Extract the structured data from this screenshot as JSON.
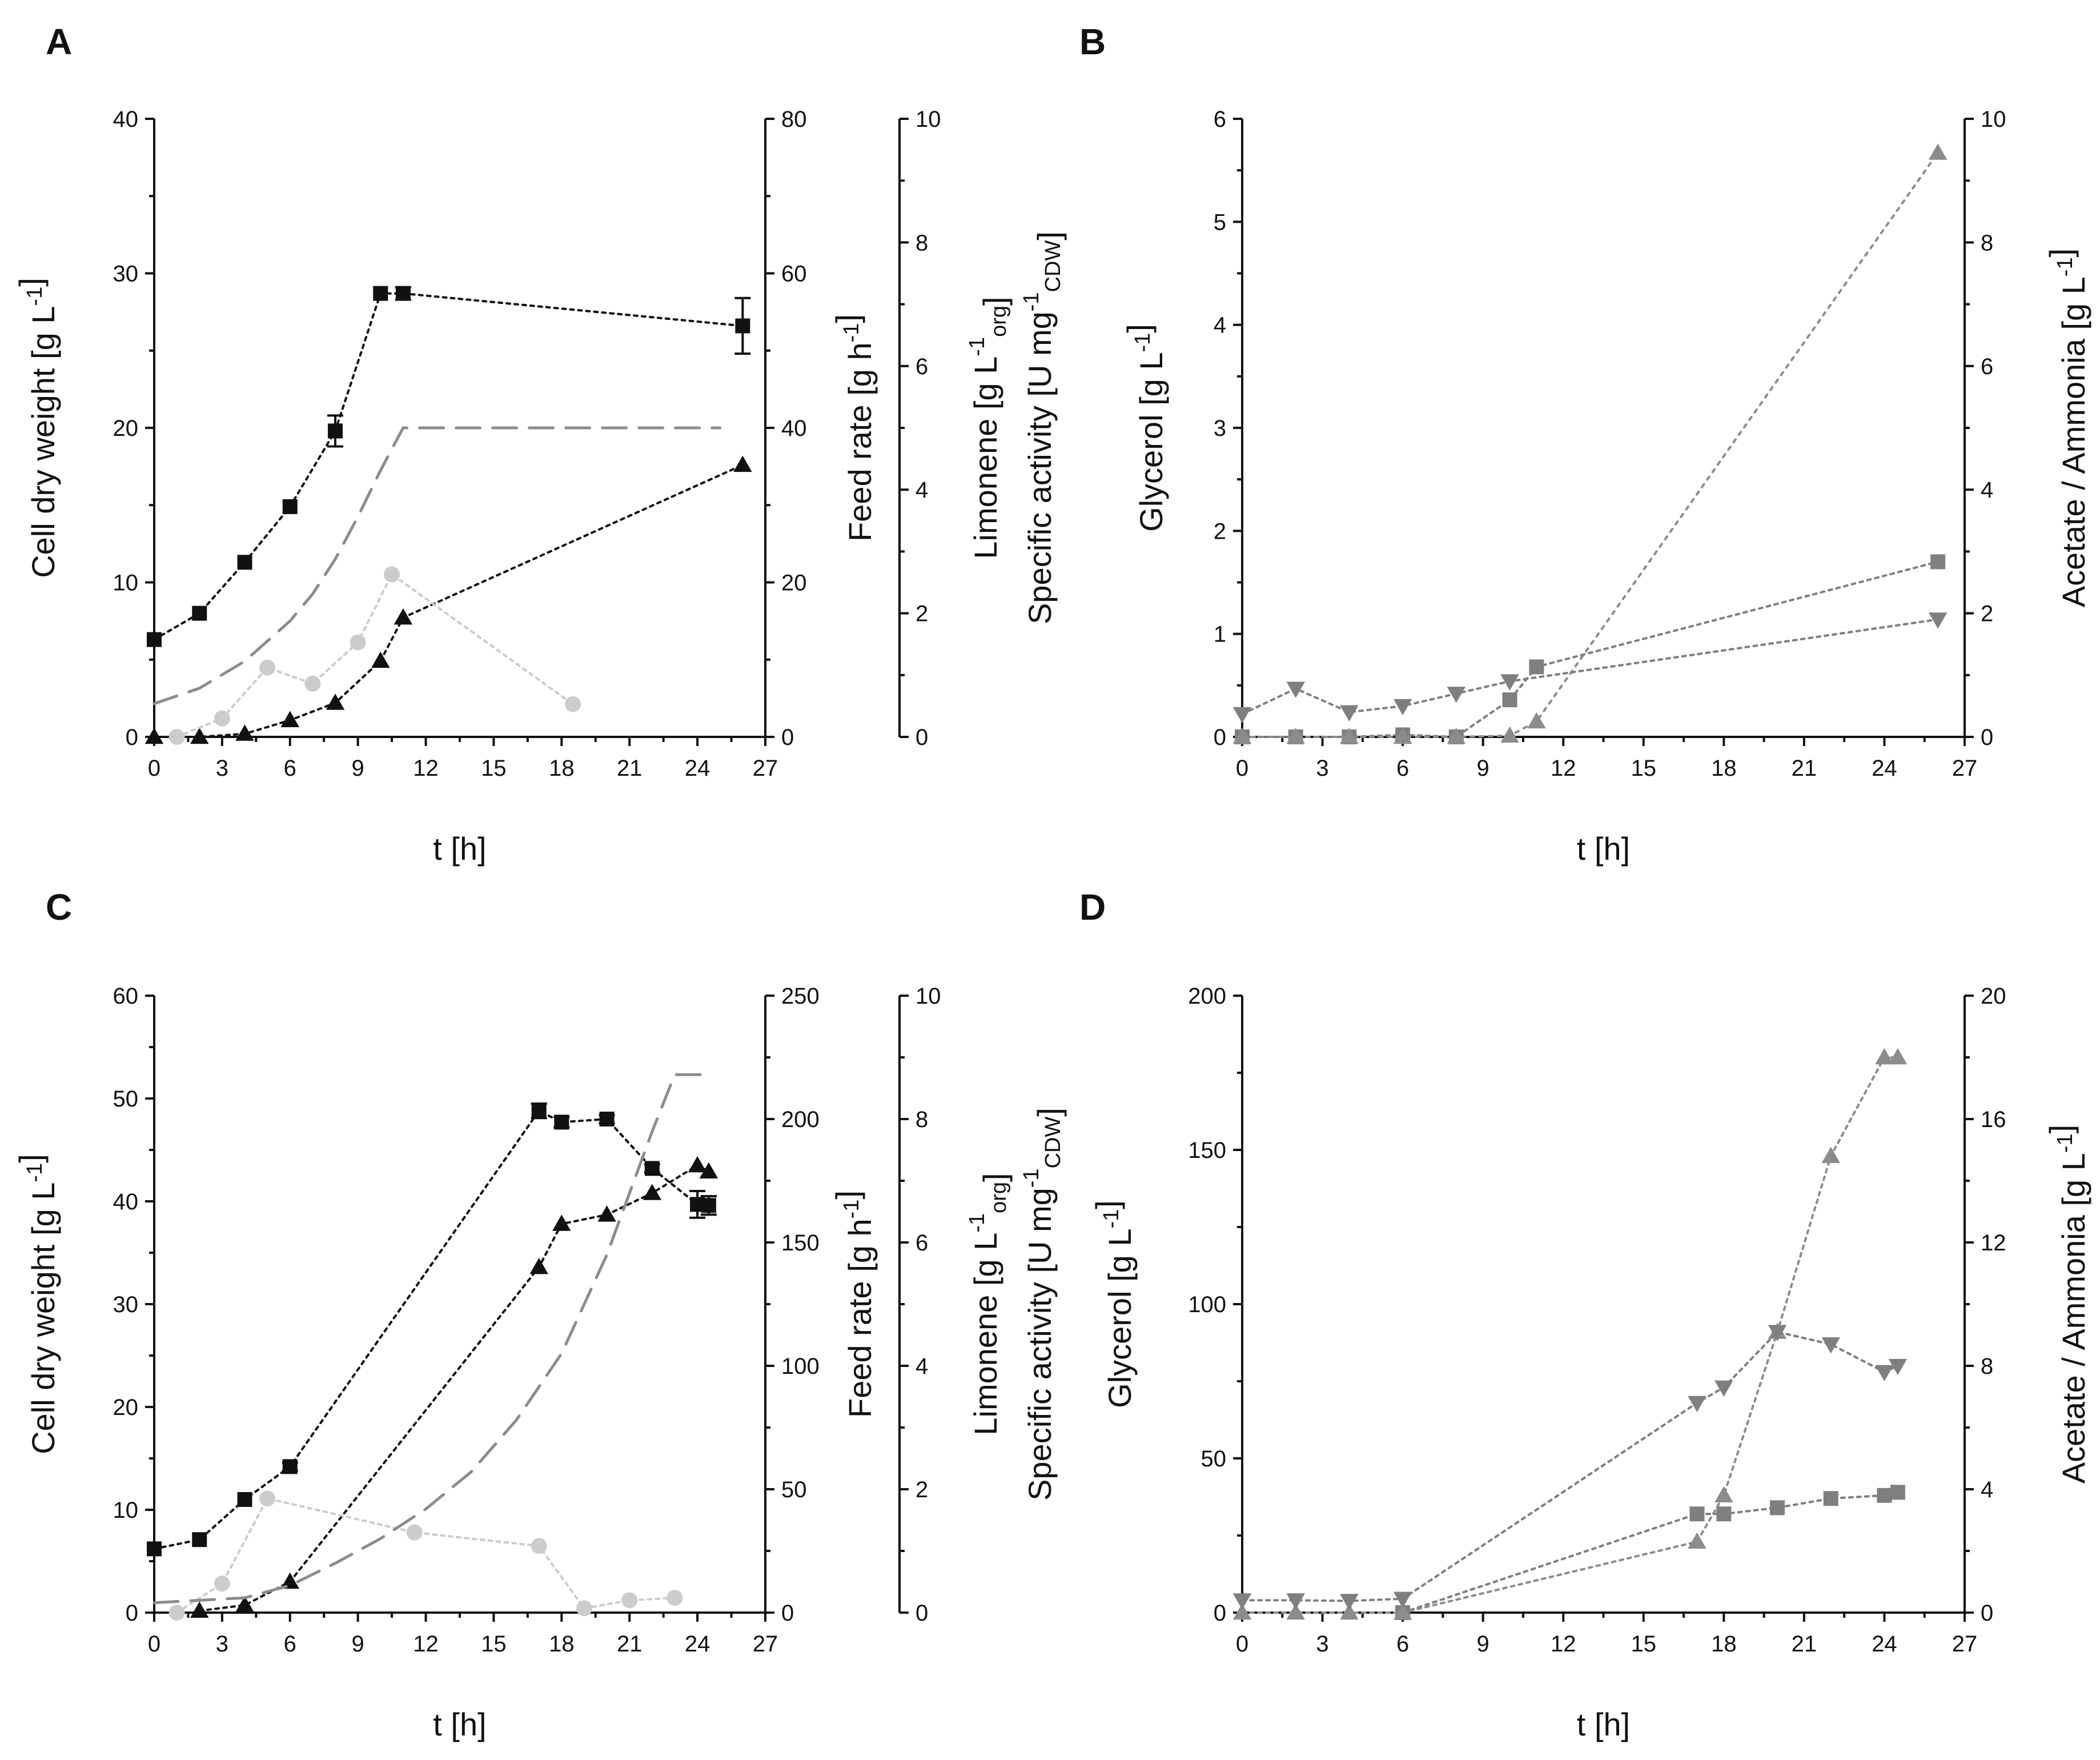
{
  "colors": {
    "black": "#111111",
    "gray": "#7f7f7f",
    "light_gray": "#cccccc",
    "dashed_gray": "#8c8c8c"
  },
  "chart_data": [
    {
      "panel": "A",
      "type": "line",
      "xlabel": "t [h]",
      "xlim": [
        0,
        27
      ],
      "xticks": [
        0,
        3,
        6,
        9,
        12,
        15,
        18,
        21,
        24,
        27
      ],
      "axes": [
        {
          "id": "cdw",
          "label": "Cell dry weight [g L-1]",
          "side": "left",
          "ylim": [
            0,
            40
          ],
          "ticks": [
            0,
            10,
            20,
            30,
            40
          ]
        },
        {
          "id": "feed",
          "label": "Feed rate [g h-1]",
          "side": "right",
          "ylim": [
            0,
            80
          ],
          "ticks": [
            0,
            20,
            40,
            60,
            80
          ]
        },
        {
          "id": "lim",
          "label": "Limonene [g L-1org]",
          "label2": "Specific activity [U mg-1CDW]",
          "side": "right-outer",
          "ylim": [
            0,
            10
          ],
          "ticks": [
            0,
            2,
            4,
            6,
            8,
            10
          ]
        }
      ],
      "series": [
        {
          "name": "Cell dry weight",
          "axis": "cdw",
          "marker": "square",
          "color": "#111111",
          "line": "dotted",
          "x": [
            0,
            2,
            4,
            6,
            8,
            10,
            11,
            26
          ],
          "y": [
            6.3,
            8,
            11.3,
            14.9,
            19.8,
            28.7,
            28.7,
            26.6
          ],
          "err": [
            0.3,
            0.3,
            0.3,
            0.3,
            1,
            0.3,
            0.4,
            1.8
          ]
        },
        {
          "name": "Limonene",
          "axis": "lim",
          "marker": "triangle-up",
          "color": "#111111",
          "line": "dotted",
          "x": [
            0,
            2,
            4,
            6,
            8,
            10,
            11,
            26
          ],
          "y": [
            0,
            0,
            0.05,
            0.27,
            0.55,
            1.23,
            1.93,
            4.4
          ]
        },
        {
          "name": "Specific activity",
          "axis": "lim",
          "marker": "circle",
          "color": "#cccccc",
          "line": "dotted",
          "x": [
            1,
            3,
            5,
            7,
            9,
            10.5,
            18.5
          ],
          "y": [
            0,
            0.3,
            1.12,
            0.86,
            1.53,
            2.63,
            0.53
          ]
        },
        {
          "name": "Feed rate",
          "axis": "feed",
          "marker": "none",
          "color": "#8c8c8c",
          "line": "dashed",
          "x": [
            0,
            2,
            4,
            6,
            7,
            8,
            9,
            10,
            11,
            25
          ],
          "y": [
            4.3,
            6.3,
            9.8,
            15,
            18.5,
            23,
            28.5,
            34.5,
            40,
            40
          ]
        }
      ]
    },
    {
      "panel": "B",
      "type": "line",
      "xlabel": "t [h]",
      "xlim": [
        0,
        27
      ],
      "xticks": [
        0,
        3,
        6,
        9,
        12,
        15,
        18,
        21,
        24,
        27
      ],
      "axes": [
        {
          "id": "gly",
          "label": "Glycerol [g L-1]",
          "side": "left",
          "ylim": [
            0,
            6
          ],
          "ticks": [
            0,
            1,
            2,
            3,
            4,
            5,
            6
          ]
        },
        {
          "id": "aa",
          "label": "Acetate / Ammonia [g L-1]",
          "side": "right",
          "ylim": [
            0,
            10
          ],
          "ticks": [
            0,
            2,
            4,
            6,
            8,
            10
          ]
        }
      ],
      "series": [
        {
          "name": "Glycerol",
          "axis": "gly",
          "marker": "square",
          "color": "#7f7f7f",
          "line": "dotted",
          "x": [
            0,
            2,
            4,
            6,
            8,
            10,
            11,
            26
          ],
          "y": [
            0,
            0,
            0,
            0.02,
            0,
            0.36,
            0.68,
            1.7
          ]
        },
        {
          "name": "Acetate",
          "axis": "aa",
          "marker": "triangle-up",
          "color": "#8c8c8c",
          "line": "dotted-light",
          "x": [
            0,
            2,
            4,
            6,
            8,
            10,
            11,
            26
          ],
          "y": [
            0,
            0,
            0,
            0,
            0,
            0.02,
            0.25,
            9.45
          ]
        },
        {
          "name": "Ammonia",
          "axis": "aa",
          "marker": "triangle-down",
          "color": "#7f7f7f",
          "line": "dotted",
          "x": [
            0,
            2,
            4,
            6,
            8,
            10,
            26
          ],
          "y": [
            0.37,
            0.78,
            0.4,
            0.5,
            0.7,
            0.9,
            1.9
          ]
        }
      ]
    },
    {
      "panel": "C",
      "type": "line",
      "xlabel": "t [h]",
      "xlim": [
        0,
        27
      ],
      "xticks": [
        0,
        3,
        6,
        9,
        12,
        15,
        18,
        21,
        24,
        27
      ],
      "axes": [
        {
          "id": "cdw",
          "label": "Cell dry weight [g L-1]",
          "side": "left",
          "ylim": [
            0,
            60
          ],
          "ticks": [
            0,
            10,
            20,
            30,
            40,
            50,
            60
          ]
        },
        {
          "id": "feed",
          "label": "Feed rate [g h-1]",
          "side": "right",
          "ylim": [
            0,
            250
          ],
          "ticks": [
            0,
            50,
            100,
            150,
            200,
            250
          ]
        },
        {
          "id": "lim",
          "label": "Limonene [g L-1org]",
          "label2": "Specific activity [U mg-1CDW]",
          "side": "right-outer",
          "ylim": [
            0,
            10
          ],
          "ticks": [
            0,
            2,
            4,
            6,
            8,
            10
          ]
        }
      ],
      "series": [
        {
          "name": "Cell dry weight",
          "axis": "cdw",
          "marker": "square",
          "color": "#111111",
          "line": "dotted",
          "x": [
            0,
            2,
            4,
            6,
            17,
            18,
            20,
            22,
            24,
            24.5
          ],
          "y": [
            6.2,
            7.1,
            11,
            14.2,
            48.8,
            47.7,
            48,
            43.2,
            39.7,
            39.6
          ],
          "err": [
            0.3,
            0.3,
            0.3,
            0.4,
            0.7,
            0.5,
            0.4,
            0.4,
            1.3,
            0.9
          ]
        },
        {
          "name": "Limonene",
          "axis": "lim",
          "marker": "triangle-up",
          "color": "#111111",
          "line": "dotted",
          "x": [
            2,
            4,
            6,
            17,
            18,
            20,
            22,
            24,
            24.5
          ],
          "y": [
            0.03,
            0.12,
            0.5,
            5.6,
            6.3,
            6.45,
            6.8,
            7.25,
            7.15
          ]
        },
        {
          "name": "Specific activity",
          "axis": "lim",
          "marker": "circle",
          "color": "#cccccc",
          "line": "dotted",
          "x": [
            1,
            3,
            5,
            11.5,
            17,
            19,
            21,
            23
          ],
          "y": [
            0,
            0.47,
            1.85,
            1.3,
            1.08,
            0.07,
            0.2,
            0.24
          ]
        },
        {
          "name": "Feed rate",
          "axis": "feed",
          "marker": "none",
          "color": "#8c8c8c",
          "line": "dashed",
          "x": [
            0,
            4,
            6,
            8,
            10,
            12,
            14,
            16,
            18,
            20,
            22,
            23,
            24.5
          ],
          "y": [
            4,
            6,
            11,
            20,
            30,
            42,
            57,
            78,
            105,
            145,
            195,
            218,
            218
          ]
        }
      ]
    },
    {
      "panel": "D",
      "type": "line",
      "xlabel": "t [h]",
      "xlim": [
        0,
        27
      ],
      "xticks": [
        0,
        3,
        6,
        9,
        12,
        15,
        18,
        21,
        24,
        27
      ],
      "axes": [
        {
          "id": "gly",
          "label": "Glycerol [g L-1]",
          "side": "left",
          "ylim": [
            0,
            200
          ],
          "ticks": [
            0,
            50,
            100,
            150,
            200
          ]
        },
        {
          "id": "aa",
          "label": "Acetate / Ammonia [g L-1]",
          "side": "right",
          "ylim": [
            0,
            20
          ],
          "ticks": [
            0,
            4,
            8,
            12,
            16,
            20
          ]
        }
      ],
      "series": [
        {
          "name": "Glycerol",
          "axis": "gly",
          "marker": "square",
          "color": "#7f7f7f",
          "line": "dotted",
          "x": [
            6,
            17,
            18,
            20,
            22,
            24,
            24.5
          ],
          "y": [
            0,
            32,
            32,
            34,
            37,
            38,
            39
          ]
        },
        {
          "name": "Acetate",
          "axis": "aa",
          "marker": "triangle-up",
          "color": "#8c8c8c",
          "line": "dotted",
          "x": [
            0,
            2,
            4,
            6,
            17,
            18,
            20,
            22,
            24,
            24.5
          ],
          "y": [
            0,
            0,
            0,
            0,
            2.3,
            3.8,
            9.1,
            14.8,
            18,
            18
          ]
        },
        {
          "name": "Ammonia",
          "axis": "aa",
          "marker": "triangle-down",
          "color": "#7f7f7f",
          "line": "dotted",
          "x": [
            0,
            2,
            4,
            6,
            17,
            18,
            20,
            22,
            24,
            24.5
          ],
          "y": [
            0.4,
            0.4,
            0.38,
            0.45,
            6.8,
            7.3,
            9.1,
            8.7,
            7.8,
            8
          ]
        }
      ]
    }
  ]
}
